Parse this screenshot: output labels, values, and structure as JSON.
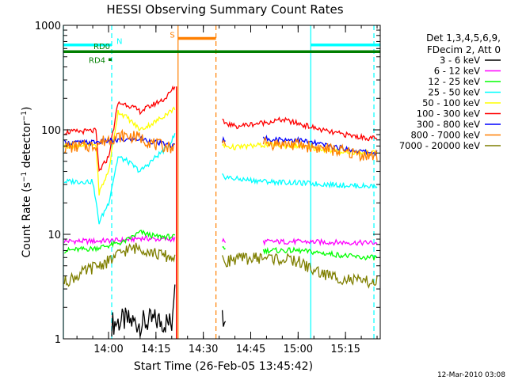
{
  "chart_data": {
    "type": "line",
    "title": "HESSI Observing Summary Count Rates",
    "xlabel": "Start Time (26-Feb-05 13:45:42)",
    "ylabel": "Count Rate (s⁻¹ detector⁻¹)",
    "yscale": "log",
    "ylim": [
      1,
      1000
    ],
    "xlim": [
      "13:45:42",
      "15:26:00"
    ],
    "y_ticks": [
      "1",
      "10",
      "100",
      "1000"
    ],
    "x_ticks": [
      "14:00",
      "14:15",
      "14:30",
      "14:45",
      "15:00",
      "15:15"
    ],
    "grid": false,
    "legend_position": "right",
    "legend_header": [
      "Det 1,3,4,5,6,9,",
      "FDecim 2, Att 0"
    ],
    "footer_date": "12-Mar-2010 03:08",
    "flags": [
      {
        "label": "N",
        "color": "#00ffff",
        "segments": [
          [
            "13:45:42",
            "14:01:00"
          ],
          [
            "15:04:00",
            "15:26:00"
          ]
        ],
        "value": 650
      },
      {
        "label": "RD0",
        "color": "#007f00",
        "segments": [
          [
            "13:45:42",
            "15:26:00"
          ]
        ],
        "value": 560
      },
      {
        "label": "RD4",
        "color": "#007f00",
        "segments": [
          [
            "14:00:00",
            "14:01:00"
          ]
        ],
        "value": 470
      },
      {
        "label": "S",
        "color": "#ff7f00",
        "segments": [
          [
            "14:22:00",
            "14:34:00"
          ]
        ],
        "value": 750
      }
    ],
    "vertical_markers": [
      {
        "time": "13:45:42",
        "color": "#00ffff",
        "style": "solid"
      },
      {
        "time": "14:01:00",
        "color": "#00ffff",
        "style": "dashed"
      },
      {
        "time": "14:22:00",
        "color": "#ff7f00",
        "style": "solid"
      },
      {
        "time": "14:34:00",
        "color": "#ff7f00",
        "style": "dashed"
      },
      {
        "time": "15:04:00",
        "color": "#00ffff",
        "style": "solid"
      },
      {
        "time": "15:24:00",
        "color": "#00ffff",
        "style": "dashed"
      }
    ],
    "series": [
      {
        "name": "3 - 6 keV",
        "color": "#000000",
        "x": [
          "14:01:00",
          "14:05:00",
          "14:10:00",
          "14:15:00",
          "14:20:00",
          "14:21:00",
          "14:36:00",
          "14:37:00"
        ],
        "y": [
          1.4,
          1.5,
          1.4,
          1.5,
          1.4,
          4.0,
          1.5,
          1.3
        ]
      },
      {
        "name": "6 - 12 keV",
        "color": "#ff00ff",
        "x": [
          "13:46:00",
          "13:55:00",
          "14:00:00",
          "14:05:00",
          "14:10:00",
          "14:15:00",
          "14:20:00",
          "14:36:00",
          "14:50:00",
          "15:00:00",
          "15:10:00",
          "15:20:00",
          "15:25:00"
        ],
        "y": [
          8.6,
          8.6,
          8.7,
          8.8,
          9.2,
          9.0,
          9.0,
          8.6,
          8.5,
          8.5,
          8.4,
          8.3,
          8.3
        ]
      },
      {
        "name": "12 - 25 keV",
        "color": "#00ff00",
        "x": [
          "13:46:00",
          "13:55:00",
          "14:00:00",
          "14:05:00",
          "14:10:00",
          "14:15:00",
          "14:20:00",
          "14:36:00",
          "14:50:00",
          "15:00:00",
          "15:10:00",
          "15:20:00",
          "15:25:00"
        ],
        "y": [
          7.0,
          7.3,
          7.8,
          8.5,
          10.5,
          9.5,
          9.5,
          7.5,
          7.0,
          7.0,
          6.5,
          6.0,
          6.0
        ]
      },
      {
        "name": "25 - 50 keV",
        "color": "#00ffff",
        "x": [
          "13:46:00",
          "13:55:00",
          "13:57:00",
          "14:00:00",
          "14:03:00",
          "14:06:00",
          "14:10:00",
          "14:15:00",
          "14:19:00",
          "14:21:00",
          "14:36:00",
          "14:40:00",
          "14:50:00",
          "15:00:00",
          "15:10:00",
          "15:20:00",
          "15:25:00"
        ],
        "y": [
          32,
          32,
          13,
          20,
          55,
          50,
          40,
          55,
          70,
          90,
          36,
          34,
          32,
          31,
          30,
          29,
          29
        ]
      },
      {
        "name": "50 - 100 keV",
        "color": "#ffff00",
        "x": [
          "13:46:00",
          "13:56:00",
          "13:57:00",
          "14:00:00",
          "14:03:00",
          "14:06:00",
          "14:10:00",
          "14:15:00",
          "14:18:00",
          "14:21:00",
          "14:36:00",
          "14:40:00",
          "14:50:00",
          "15:00:00",
          "15:10:00",
          "15:20:00",
          "15:25:00"
        ],
        "y": [
          70,
          72,
          25,
          40,
          150,
          130,
          100,
          120,
          140,
          160,
          70,
          68,
          72,
          70,
          63,
          60,
          60
        ]
      },
      {
        "name": "100 - 300 keV",
        "color": "#ff0000",
        "x": [
          "13:46:00",
          "13:56:00",
          "13:57:00",
          "14:00:00",
          "14:03:00",
          "14:06:00",
          "14:10:00",
          "14:15:00",
          "14:18:00",
          "14:21:00",
          "14:36:00",
          "14:40:00",
          "14:50:00",
          "14:55:00",
          "15:00:00",
          "15:10:00",
          "15:20:00",
          "15:25:00"
        ],
        "y": [
          95,
          98,
          40,
          55,
          180,
          175,
          150,
          180,
          200,
          260,
          120,
          108,
          118,
          125,
          115,
          95,
          85,
          82
        ]
      },
      {
        "name": "300 - 800 keV",
        "color": "#0000ff",
        "x": [
          "13:46:00",
          "13:55:00",
          "14:00:00",
          "14:05:00",
          "14:10:00",
          "14:15:00",
          "14:20:00",
          "14:36:00",
          "14:50:00",
          "15:00:00",
          "15:10:00",
          "15:20:00",
          "15:25:00"
        ],
        "y": [
          75,
          76,
          78,
          80,
          82,
          76,
          70,
          80,
          82,
          80,
          70,
          62,
          60
        ]
      },
      {
        "name": "800 - 7000 keV",
        "color": "#ff7f00",
        "x": [
          "13:46:00",
          "13:55:00",
          "14:00:00",
          "14:05:00",
          "14:10:00",
          "14:15:00",
          "14:20:00",
          "14:36:00",
          "14:50:00",
          "15:00:00",
          "15:10:00",
          "15:20:00",
          "15:25:00"
        ],
        "y": [
          68,
          70,
          82,
          88,
          84,
          72,
          68,
          72,
          74,
          72,
          65,
          58,
          56
        ]
      },
      {
        "name": "7000 - 20000 keV",
        "color": "#7f7f00",
        "x": [
          "13:46:00",
          "13:50:00",
          "13:55:00",
          "14:00:00",
          "14:05:00",
          "14:10:00",
          "14:15:00",
          "14:20:00",
          "14:36:00",
          "14:40:00",
          "14:50:00",
          "15:00:00",
          "15:05:00",
          "15:10:00",
          "15:20:00",
          "15:25:00"
        ],
        "y": [
          3.5,
          4.0,
          4.8,
          5.5,
          7.0,
          7.5,
          6.5,
          6.0,
          5.5,
          5.8,
          6.0,
          5.5,
          4.5,
          4.0,
          3.5,
          3.5
        ]
      }
    ]
  }
}
